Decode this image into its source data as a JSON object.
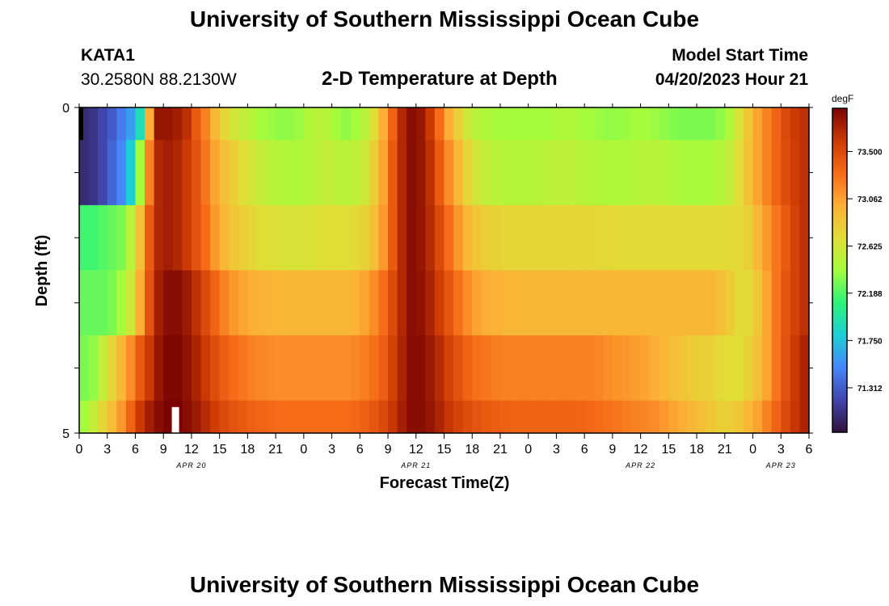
{
  "header": {
    "title": "University of Southern Mississippi Ocean Cube",
    "station": "KATA1",
    "coords": "30.2580N  88.2130W",
    "subtitle": "2-D Temperature at Depth",
    "start_label": "Model Start Time",
    "start_value": "04/20/2023 Hour 21"
  },
  "footer": {
    "title": "University of Southern Mississippi Ocean Cube"
  },
  "chart_data": {
    "type": "heatmap",
    "title": "2-D Temperature at Depth",
    "xlabel": "Forecast Time(Z)",
    "ylabel": "Depth (ft)",
    "x_ticks": [
      "0",
      "3",
      "6",
      "9",
      "12",
      "15",
      "18",
      "21",
      "0",
      "3",
      "6",
      "9",
      "12",
      "15",
      "18",
      "21",
      "0",
      "3",
      "6",
      "9",
      "12",
      "15",
      "18",
      "21",
      "0",
      "3",
      "6"
    ],
    "y_ticks": [
      "0",
      "5"
    ],
    "date_labels": [
      {
        "label": "APR 20",
        "hour": 12
      },
      {
        "label": "APR 21",
        "hour": 36
      },
      {
        "label": "APR 22",
        "hour": 60
      },
      {
        "label": "APR 23",
        "hour": 75
      }
    ],
    "x_range_hours": [
      0,
      78
    ],
    "y_range_ft": [
      0,
      5
    ],
    "colorbar": {
      "unit": "degF",
      "ticks": [
        "73.500",
        "73.062",
        "72.625",
        "72.188",
        "71.750",
        "71.312"
      ],
      "min": 70.9,
      "max": 73.9,
      "colormap": [
        "#30123b",
        "#4146ad",
        "#4686fa",
        "#1bd0d5",
        "#2bf37a",
        "#a4fc3c",
        "#e1dd37",
        "#fdaf35",
        "#f66b18",
        "#cc3a04",
        "#7a0403"
      ]
    },
    "layer_depths_ft": [
      "0-0.5",
      "0.5-1.5",
      "1.5-2.5",
      "2.5-3.5",
      "3.5-4.5",
      "4.5-5"
    ],
    "temperature_degF": [
      [
        71.05,
        71.1,
        71.2,
        71.3,
        71.45,
        71.6,
        71.9,
        73.0,
        73.8,
        73.8,
        73.75,
        73.65,
        73.4,
        73.2,
        72.95,
        72.75,
        72.62,
        72.55,
        72.48,
        72.4,
        72.38,
        72.35,
        72.35,
        72.38,
        72.45,
        72.5,
        72.48,
        72.4,
        72.35,
        72.4,
        72.5,
        72.7,
        73.0,
        73.35,
        73.7,
        73.85,
        73.8,
        73.6,
        73.3,
        73.0,
        72.8,
        72.6,
        72.5,
        72.45,
        72.42,
        72.4,
        72.4,
        72.4,
        72.4,
        72.4,
        72.42,
        72.45,
        72.45,
        72.42,
        72.4,
        72.38,
        72.36,
        72.36,
        72.38,
        72.4,
        72.4,
        72.38,
        72.35,
        72.32,
        72.3,
        72.3,
        72.3,
        72.3,
        72.35,
        72.45,
        72.65,
        72.85,
        73.05,
        73.2,
        73.35,
        73.5,
        73.6,
        73.65
      ],
      [
        71.05,
        71.1,
        71.2,
        71.35,
        71.5,
        71.8,
        72.4,
        73.2,
        73.7,
        73.75,
        73.7,
        73.6,
        73.45,
        73.25,
        73.05,
        72.9,
        72.8,
        72.7,
        72.62,
        72.55,
        72.5,
        72.48,
        72.45,
        72.45,
        72.48,
        72.52,
        72.55,
        72.52,
        72.5,
        72.52,
        72.6,
        72.8,
        73.05,
        73.4,
        73.7,
        73.85,
        73.8,
        73.65,
        73.4,
        73.15,
        72.95,
        72.75,
        72.62,
        72.55,
        72.5,
        72.48,
        72.48,
        72.48,
        72.48,
        72.5,
        72.52,
        72.52,
        72.52,
        72.5,
        72.48,
        72.46,
        72.45,
        72.45,
        72.46,
        72.48,
        72.5,
        72.5,
        72.48,
        72.45,
        72.43,
        72.42,
        72.42,
        72.43,
        72.48,
        72.55,
        72.7,
        72.88,
        73.05,
        73.2,
        73.35,
        73.48,
        73.58,
        73.65
      ],
      [
        72.15,
        72.15,
        72.2,
        72.25,
        72.3,
        72.5,
        72.9,
        73.4,
        73.7,
        73.75,
        73.7,
        73.6,
        73.45,
        73.3,
        73.1,
        72.95,
        72.85,
        72.8,
        72.75,
        72.7,
        72.68,
        72.66,
        72.65,
        72.65,
        72.66,
        72.68,
        72.7,
        72.7,
        72.7,
        72.72,
        72.78,
        72.9,
        73.1,
        73.4,
        73.7,
        73.85,
        73.8,
        73.68,
        73.5,
        73.3,
        73.1,
        72.95,
        72.85,
        72.8,
        72.78,
        72.76,
        72.76,
        72.76,
        72.76,
        72.76,
        72.76,
        72.76,
        72.76,
        72.76,
        72.75,
        72.74,
        72.73,
        72.72,
        72.72,
        72.72,
        72.72,
        72.72,
        72.72,
        72.72,
        72.72,
        72.72,
        72.72,
        72.72,
        72.72,
        72.72,
        72.72,
        72.8,
        72.95,
        73.1,
        73.25,
        73.4,
        73.55,
        73.65
      ],
      [
        72.25,
        72.25,
        72.25,
        72.3,
        72.4,
        72.6,
        73.0,
        73.45,
        73.75,
        73.85,
        73.85,
        73.78,
        73.65,
        73.5,
        73.35,
        73.2,
        73.1,
        73.05,
        73.0,
        72.98,
        72.96,
        72.95,
        72.95,
        72.95,
        72.95,
        72.95,
        72.95,
        72.95,
        72.95,
        72.98,
        73.05,
        73.15,
        73.3,
        73.5,
        73.7,
        73.85,
        73.82,
        73.72,
        73.58,
        73.42,
        73.28,
        73.15,
        73.05,
        73.0,
        72.98,
        72.96,
        72.95,
        72.95,
        72.95,
        72.95,
        72.95,
        72.95,
        72.95,
        72.95,
        72.95,
        72.95,
        72.95,
        72.95,
        72.95,
        72.95,
        72.95,
        72.95,
        72.95,
        72.95,
        72.95,
        72.95,
        72.95,
        72.95,
        72.9,
        72.82,
        72.72,
        72.72,
        72.85,
        73.05,
        73.25,
        73.42,
        73.55,
        73.65
      ],
      [
        72.3,
        72.35,
        72.55,
        72.75,
        72.95,
        73.15,
        73.4,
        73.6,
        73.8,
        73.88,
        73.88,
        73.82,
        73.72,
        73.6,
        73.48,
        73.38,
        73.3,
        73.25,
        73.2,
        73.18,
        73.16,
        73.15,
        73.15,
        73.15,
        73.15,
        73.15,
        73.15,
        73.15,
        73.15,
        73.18,
        73.22,
        73.28,
        73.38,
        73.55,
        73.72,
        73.85,
        73.85,
        73.78,
        73.68,
        73.55,
        73.45,
        73.35,
        73.28,
        73.25,
        73.22,
        73.2,
        73.2,
        73.2,
        73.2,
        73.2,
        73.2,
        73.2,
        73.2,
        73.2,
        73.2,
        73.18,
        73.15,
        73.12,
        73.1,
        73.08,
        73.05,
        73.0,
        72.95,
        72.9,
        72.85,
        72.82,
        72.8,
        72.78,
        72.72,
        72.7,
        72.7,
        72.78,
        72.9,
        73.05,
        73.25,
        73.45,
        73.6,
        73.72
      ],
      [
        72.4,
        72.55,
        72.75,
        72.9,
        73.1,
        73.35,
        73.6,
        73.75,
        73.85,
        73.9,
        73.9,
        73.85,
        73.78,
        73.68,
        73.58,
        73.5,
        73.44,
        73.4,
        73.36,
        73.34,
        73.32,
        73.3,
        73.3,
        73.3,
        73.3,
        73.3,
        73.3,
        73.3,
        73.3,
        73.32,
        73.36,
        73.42,
        73.5,
        73.62,
        73.75,
        73.85,
        73.85,
        73.8,
        73.72,
        73.62,
        73.55,
        73.48,
        73.44,
        73.4,
        73.38,
        73.36,
        73.35,
        73.35,
        73.35,
        73.35,
        73.35,
        73.35,
        73.35,
        73.34,
        73.32,
        73.3,
        73.28,
        73.25,
        73.22,
        73.2,
        73.18,
        73.15,
        73.1,
        73.05,
        73.0,
        72.95,
        72.9,
        72.85,
        72.8,
        72.8,
        72.85,
        72.95,
        73.05,
        73.2,
        73.35,
        73.5,
        73.62,
        73.72
      ]
    ]
  }
}
